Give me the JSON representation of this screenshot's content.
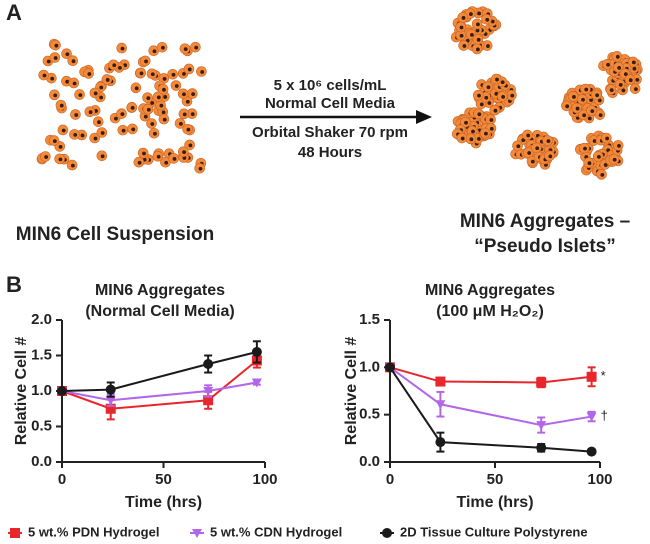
{
  "panel_a": {
    "label": "A",
    "conditions": [
      "5 x 10⁶ cells/mL",
      "Normal Cell Media",
      "Orbital Shaker 70 rpm",
      "48 Hours"
    ],
    "left_caption": "MIN6 Cell Suspension",
    "right_caption": [
      "MIN6 Aggregates –",
      "“Pseudo Islets”"
    ]
  },
  "panel_b": {
    "label": "B"
  },
  "chart_data": [
    {
      "type": "line",
      "title": "MIN6 Aggregates",
      "subtitle": "(Normal Cell Media)",
      "x_label": "Time (hrs)",
      "y_label": "Relative Cell #",
      "x": [
        0,
        24,
        72,
        96
      ],
      "xlim": [
        0,
        100
      ],
      "xticks": [
        0,
        50,
        100
      ],
      "ylim": [
        0,
        2.0
      ],
      "yticks": [
        {
          "value": 0,
          "label": "0.0"
        },
        {
          "value": 0.5,
          "label": "0.5"
        },
        {
          "value": 1.0,
          "label": "1.0"
        },
        {
          "value": 1.5,
          "label": "1.5"
        },
        {
          "value": 2.0,
          "label": "2.0"
        }
      ],
      "grid": false,
      "series": [
        {
          "name": "5 wt.% PDN Hydrogel",
          "color": "#e8262b",
          "marker": "square",
          "values": [
            1.0,
            0.75,
            0.87,
            1.43
          ],
          "errors": [
            0,
            0.15,
            0.12,
            0.1
          ]
        },
        {
          "name": "5 wt.% CDN Hydrogel",
          "color": "#b266e8",
          "marker": "triangle-down",
          "values": [
            1.0,
            0.87,
            1.0,
            1.12
          ],
          "errors": [
            0,
            0.08,
            0.08,
            0.03
          ]
        },
        {
          "name": "2D Tissue Culture Polystyrene",
          "color": "#1a1a1a",
          "marker": "circle",
          "values": [
            1.0,
            1.02,
            1.38,
            1.55
          ],
          "errors": [
            0,
            0.1,
            0.12,
            0.15
          ]
        }
      ]
    },
    {
      "type": "line",
      "title": "MIN6 Aggregates",
      "subtitle": "(100 μM H₂O₂)",
      "x_label": "Time (hrs)",
      "y_label": "Relative Cell #",
      "x": [
        0,
        24,
        72,
        96
      ],
      "xlim": [
        0,
        100
      ],
      "xticks": [
        0,
        50,
        100
      ],
      "ylim": [
        0,
        1.5
      ],
      "yticks": [
        {
          "value": 0,
          "label": "0.0"
        },
        {
          "value": 0.5,
          "label": "0.5"
        },
        {
          "value": 1.0,
          "label": "1.0"
        },
        {
          "value": 1.5,
          "label": "1.5"
        }
      ],
      "grid": false,
      "series": [
        {
          "color": "#e8262b",
          "marker": "square",
          "values": [
            1.0,
            0.85,
            0.84,
            0.9
          ],
          "errors": [
            0,
            0.02,
            0.05,
            0.1
          ],
          "annotation": "*"
        },
        {
          "color": "#b266e8",
          "marker": "triangle-down",
          "values": [
            1.0,
            0.61,
            0.39,
            0.48
          ],
          "errors": [
            0,
            0.13,
            0.08,
            0.05
          ],
          "annotation": "†"
        },
        {
          "color": "#1a1a1a",
          "marker": "circle",
          "values": [
            1.0,
            0.21,
            0.15,
            0.11
          ],
          "errors": [
            0,
            0.1,
            0.04,
            0.02
          ]
        }
      ]
    }
  ]
}
